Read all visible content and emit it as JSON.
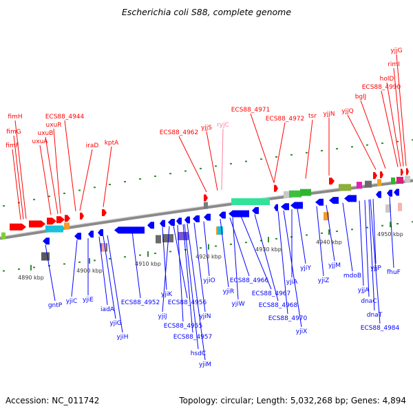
{
  "title": "Escherichia coli S88, complete genome",
  "footer": {
    "accession": "Accession: NC_011742",
    "summary": "Topology: circular; Length: 5,032,268 bp; Genes: 4,894"
  },
  "colors": {
    "forward": "#ff0000",
    "reverse": "#0000ff",
    "rna": "#ff7f9f",
    "backbone": "#888888",
    "scale_tick": "#008000"
  },
  "kbp_ticks": [
    {
      "label": "4890 kbp"
    },
    {
      "label": "4900 kbp"
    },
    {
      "label": "4910 kbp"
    },
    {
      "label": "4920 kbp"
    },
    {
      "label": "4930 kbp"
    },
    {
      "label": "4940 kbp"
    },
    {
      "label": "4950 kbp"
    }
  ],
  "top_labels": [
    {
      "text": "fimH",
      "color": "#ff0000"
    },
    {
      "text": "fimG",
      "color": "#ff0000"
    },
    {
      "text": "fimF",
      "color": "#ff0000"
    },
    {
      "text": "ECS88_4944",
      "color": "#ff0000"
    },
    {
      "text": "uxuR",
      "color": "#ff0000"
    },
    {
      "text": "uxuB",
      "color": "#ff0000"
    },
    {
      "text": "uxuA",
      "color": "#ff0000"
    },
    {
      "text": "iraD",
      "color": "#ff0000"
    },
    {
      "text": "kptA",
      "color": "#ff0000"
    },
    {
      "text": "ECS88_4962",
      "color": "#ff0000"
    },
    {
      "text": "yjjS",
      "color": "#ff0000"
    },
    {
      "text": "ryjC",
      "color": "#ff7f9f"
    },
    {
      "text": "ECS88_4971",
      "color": "#ff0000"
    },
    {
      "text": "ECS88_4972",
      "color": "#ff0000"
    },
    {
      "text": "tsr",
      "color": "#ff0000"
    },
    {
      "text": "yjjN",
      "color": "#ff0000"
    },
    {
      "text": "yjjQ",
      "color": "#ff0000"
    },
    {
      "text": "bglJ",
      "color": "#ff0000"
    },
    {
      "text": "ECS88_4990",
      "color": "#ff0000"
    },
    {
      "text": "holD",
      "color": "#ff0000"
    },
    {
      "text": "rimI",
      "color": "#ff0000"
    },
    {
      "text": "yjjG",
      "color": "#ff0000"
    }
  ],
  "bottom_labels": [
    {
      "text": "gntP"
    },
    {
      "text": "yjiC"
    },
    {
      "text": "yjiE"
    },
    {
      "text": "iadA"
    },
    {
      "text": "yjiG"
    },
    {
      "text": "yjiH"
    },
    {
      "text": "ECS88_4952"
    },
    {
      "text": "yjiK"
    },
    {
      "text": "yjiJ"
    },
    {
      "text": "ECS88_4956"
    },
    {
      "text": "ECS88_4955"
    },
    {
      "text": "ECS88_4957"
    },
    {
      "text": "hsdC"
    },
    {
      "text": "yjiM"
    },
    {
      "text": "yjiN"
    },
    {
      "text": "yjiO"
    },
    {
      "text": "yjiR"
    },
    {
      "text": "ECS88_4966"
    },
    {
      "text": "yjiW"
    },
    {
      "text": "ECS88_4967"
    },
    {
      "text": "ECS88_4968"
    },
    {
      "text": "ECS88_4970"
    },
    {
      "text": "yjiX"
    },
    {
      "text": "yjiA"
    },
    {
      "text": "yjiY"
    },
    {
      "text": "yjiZ"
    },
    {
      "text": "yjjM"
    },
    {
      "text": "mdoB"
    },
    {
      "text": "yjjA"
    },
    {
      "text": "dnaC"
    },
    {
      "text": "dnaT"
    },
    {
      "text": "ECS88_4984"
    },
    {
      "text": "yjjP"
    },
    {
      "text": "fhuF"
    }
  ]
}
